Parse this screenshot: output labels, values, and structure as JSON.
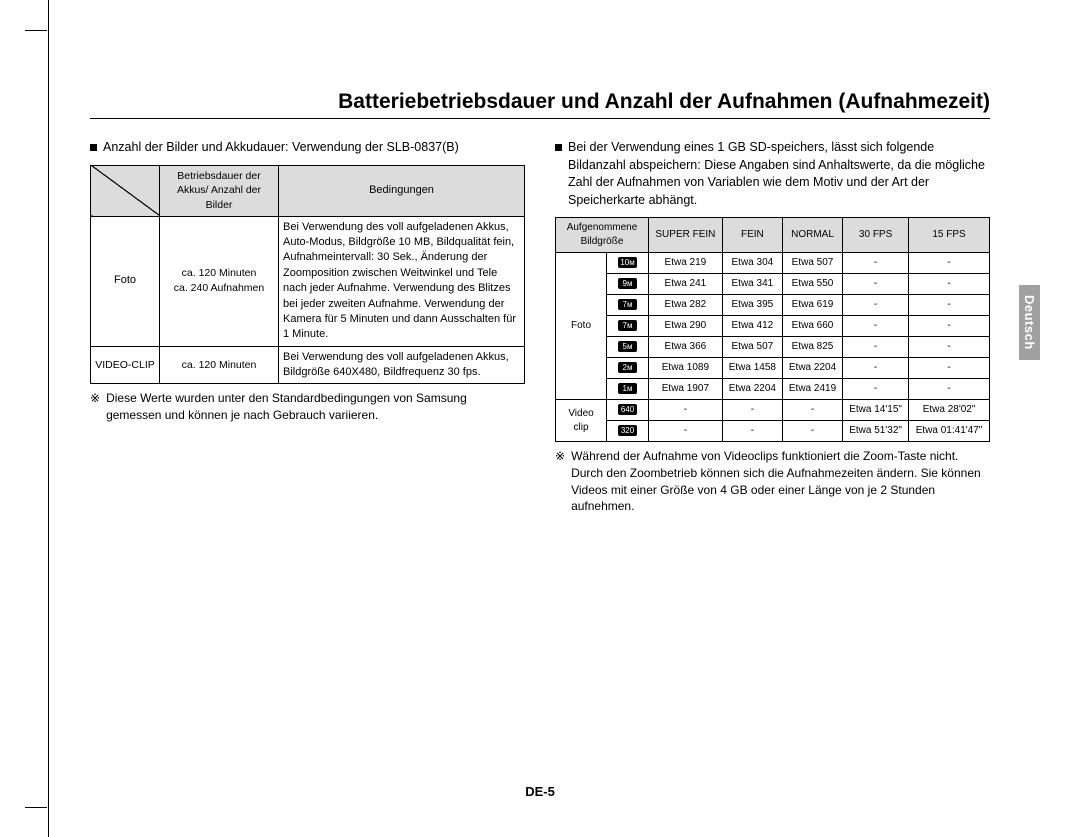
{
  "title": "Batteriebetriebsdauer und Anzahl der Aufnahmen (Aufnahmezeit)",
  "lang_tab": "Deutsch",
  "page_number": "DE-5",
  "left": {
    "intro": "Anzahl der Bilder und Akkudauer: Verwendung der SLB-0837(B)",
    "t1_headers": {
      "h1": "Betriebsdauer der Akkus/ Anzahl der Bilder",
      "h2": "Bedingungen"
    },
    "t1_rows": [
      {
        "cat": "Foto",
        "dur": "ca. 120 Minuten\nca. 240 Aufnahmen",
        "cond": "Bei Verwendung des voll aufgeladenen Akkus, Auto-Modus, Bildgröße 10 MB, Bildqualität fein, Aufnahmeintervall: 30 Sek., Änderung der Zoomposition zwischen Weitwinkel und Tele nach jeder Aufnahme. Verwendung des Blitzes bei jeder zweiten Aufnahme. Verwendung der Kamera für 5 Minuten und dann Ausschalten für 1 Minute."
      },
      {
        "cat": "VIDEO-CLIP",
        "dur": "ca. 120 Minuten",
        "cond": "Bei Verwendung des voll aufgeladenen Akkus, Bildgröße 640X480, Bildfrequenz 30 fps."
      }
    ],
    "note_sym": "※",
    "note": "Diese Werte wurden unter den Standardbedingungen von Samsung gemessen und können je nach Gebrauch variieren."
  },
  "right": {
    "intro": "Bei der Verwendung eines 1 GB SD-speichers, lässt sich folgende Bildanzahl abspeichern: Diese Angaben sind Anhaltswerte, da die mögliche Zahl der Aufnahmen von Variablen wie dem Motiv und der Art der Speicherkarte abhängt.",
    "t2_headers": {
      "h0": "Aufgenommene Bildgröße",
      "h1": "SUPER FEIN",
      "h2": "FEIN",
      "h3": "NORMAL",
      "h4": "30 FPS",
      "h5": "15 FPS"
    },
    "cat_foto": "Foto",
    "cat_video": "Video clip",
    "rows_foto": [
      {
        "icon": "10м",
        "a": "Etwa 219",
        "b": "Etwa 304",
        "c": "Etwa 507",
        "d": "-",
        "e": "-"
      },
      {
        "icon": "9м",
        "a": "Etwa 241",
        "b": "Etwa 341",
        "c": "Etwa 550",
        "d": "-",
        "e": "-"
      },
      {
        "icon": "7м",
        "a": "Etwa 282",
        "b": "Etwa 395",
        "c": "Etwa 619",
        "d": "-",
        "e": "-"
      },
      {
        "icon": "7м",
        "a": "Etwa 290",
        "b": "Etwa 412",
        "c": "Etwa 660",
        "d": "-",
        "e": "-"
      },
      {
        "icon": "5м",
        "a": "Etwa 366",
        "b": "Etwa 507",
        "c": "Etwa 825",
        "d": "-",
        "e": "-"
      },
      {
        "icon": "2м",
        "a": "Etwa 1089",
        "b": "Etwa 1458",
        "c": "Etwa 2204",
        "d": "-",
        "e": "-"
      },
      {
        "icon": "1м",
        "a": "Etwa 1907",
        "b": "Etwa 2204",
        "c": "Etwa 2419",
        "d": "-",
        "e": "-"
      }
    ],
    "rows_video": [
      {
        "icon": "640",
        "a": "-",
        "b": "-",
        "c": "-",
        "d": "Etwa 14'15\"",
        "e": "Etwa 28'02\""
      },
      {
        "icon": "320",
        "a": "-",
        "b": "-",
        "c": "-",
        "d": "Etwa 51'32\"",
        "e": "Etwa 01:41'47\""
      }
    ],
    "note_sym": "※",
    "note": "Während der Aufnahme von Videoclips funktioniert die Zoom-Taste nicht. Durch den Zoombetrieb können sich die Aufnahmezeiten ändern. Sie können Videos mit einer Größe von 4 GB oder einer Länge von je 2 Stunden aufnehmen."
  }
}
